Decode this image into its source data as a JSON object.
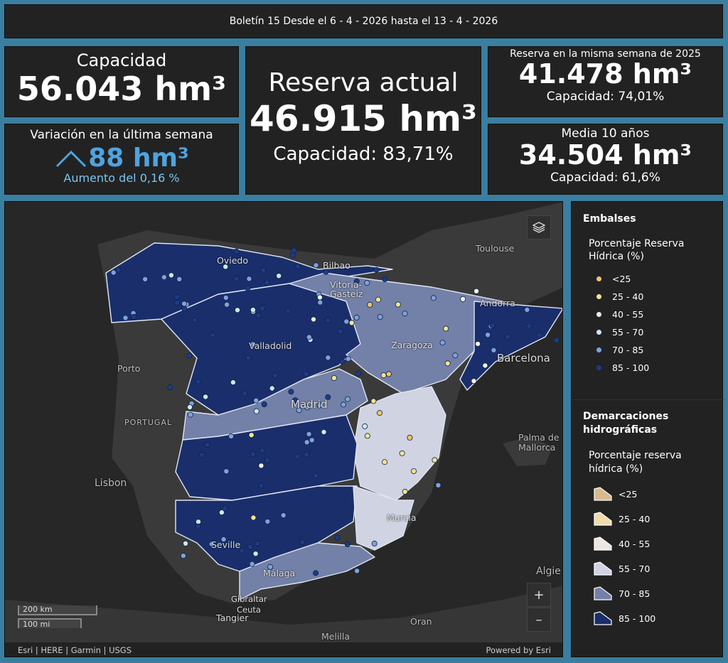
{
  "header": {
    "title": "Boletín 15 Desde el 6 - 4 - 2026 hasta el 13 - 4 - 2026"
  },
  "capacidad": {
    "title": "Capacidad",
    "value": "56.043 hm³"
  },
  "variacion": {
    "title": "Variación en la última semana",
    "value": "88 hm³",
    "note": "Aumento del 0,16 %"
  },
  "reserva": {
    "title": "Reserva actual",
    "value": "46.915 hm³",
    "pct": "Capacidad: 83,71%"
  },
  "reserva_2025": {
    "title": "Reserva en la misma semana de 2025",
    "value": "41.478 hm³",
    "pct": "Capacidad: 74,01%"
  },
  "media10": {
    "title": "Media 10 años",
    "value": "34.504 hm³",
    "pct": "Capacidad: 61,6%"
  },
  "map": {
    "labels": {
      "toulouse": "Toulouse",
      "oviedo": "Oviedo",
      "bilbao": "Bilbao",
      "vitoria": "Vitoria-\nGasteiz",
      "andorra": "Andorra",
      "valladolid": "Valladolid",
      "zaragoza": "Zaragoza",
      "barcelona": "Barcelona",
      "porto": "Porto",
      "portugal": "PORTUGAL",
      "madrid": "Madrid",
      "palma": "Palma de\nMallorca",
      "lisbon": "Lisbon",
      "murcia": "Murcia",
      "seville": "Seville",
      "malaga": "Málaga",
      "algiers": "Algie",
      "gibraltar": "Gibraltar",
      "ceuta": "Ceuta",
      "tangier": "Tangier",
      "oran": "Oran",
      "melilla": "Melilla"
    },
    "scale_km": "200 km",
    "scale_mi": "100 mi",
    "attribution": "Esri | HERE | Garmin | USGS",
    "powered": "Powered by Esri",
    "zoom_in": "+",
    "zoom_out": "–"
  },
  "legend": {
    "embalses_title": "Embalses",
    "embalses_sub": "Porcentaje Reserva Hídrica (%)",
    "embalses_items": [
      "<25",
      "25 - 40",
      "40 - 55",
      "55 - 70",
      "70 - 85",
      "85 - 100"
    ],
    "dem_title": "Demarcaciones hidrográficas",
    "dem_sub": "Porcentaje reserva hídrica (%)",
    "dem_items": [
      "<25",
      "25 - 40",
      "40 - 55",
      "55 - 70",
      "70 - 85",
      "85 - 100"
    ]
  },
  "colors": {
    "dots": [
      "#f2c56b",
      "#f3e48f",
      "#f4f1ea",
      "#c8ecf0",
      "#7ea3d8",
      "#1b3c87"
    ],
    "polys": [
      "#d9b88c",
      "#f1dcab",
      "#ede6e0",
      "#cfd3e2",
      "#7380a8",
      "#1a2e6b"
    ],
    "accent": "#4ea3e0"
  }
}
